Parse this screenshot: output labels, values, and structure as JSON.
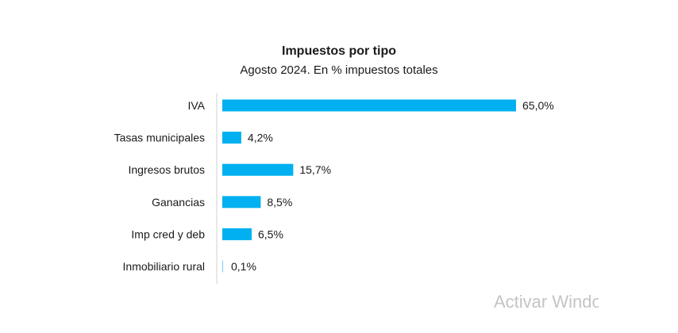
{
  "chart_data": {
    "type": "bar",
    "orientation": "horizontal",
    "title": "Impuestos por tipo",
    "subtitle": "Agosto 2024. En % impuestos totales",
    "categories": [
      "IVA",
      "Tasas municipales",
      "Ingresos brutos",
      "Ganancias",
      "Imp cred y deb",
      "Inmobiliario rural"
    ],
    "values": [
      65.0,
      4.2,
      15.7,
      8.5,
      6.5,
      0.1
    ],
    "value_labels": [
      "65,0%",
      "4,2%",
      "15,7%",
      "8,5%",
      "6,5%",
      "0,1%"
    ],
    "xlim": [
      0,
      65
    ],
    "bar_color": "#00b0f0",
    "grid": false,
    "legend": "none"
  },
  "watermark": "Activar Windows"
}
